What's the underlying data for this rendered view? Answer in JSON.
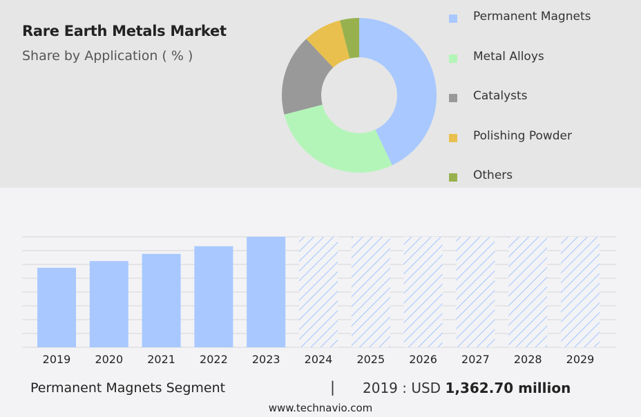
{
  "header": {
    "title": "Rare Earth Metals Market",
    "subtitle": "Share by Application ( % )"
  },
  "chart_data": [
    {
      "type": "pie",
      "variant": "donut",
      "title": "Rare Earth Metals Market",
      "subtitle": "Share by Application ( % )",
      "legend_position": "right",
      "slices": [
        {
          "name": "Permanent Magnets",
          "value": 43,
          "color": "#a8c8ff"
        },
        {
          "name": "Metal Alloys",
          "value": 28,
          "color": "#b3f5b8"
        },
        {
          "name": "Catalysts",
          "value": 17,
          "color": "#999999"
        },
        {
          "name": "Polishing Powder",
          "value": 8,
          "color": "#e9c04d"
        },
        {
          "name": "Others",
          "value": 4,
          "color": "#98b14f"
        }
      ]
    },
    {
      "type": "bar",
      "categories": [
        "2019",
        "2020",
        "2021",
        "2022",
        "2023",
        "2024",
        "2025",
        "2026",
        "2027",
        "2028",
        "2029"
      ],
      "values": [
        1362.7,
        1477.4,
        1601.2,
        1731.6,
        1893.5,
        1893.5,
        1893.5,
        1893.5,
        1893.5,
        1893.5,
        1893.5
      ],
      "forecast_from": "2024",
      "forecast_style": "hatched",
      "ylim": [
        0,
        1893.5
      ],
      "grid": true,
      "bar_color": "#a8c8ff"
    }
  ],
  "footer": {
    "segment_label": "Permanent Magnets Segment",
    "separator": "|",
    "year_label": "2019 : USD",
    "value": "1,362.70 million"
  },
  "source": "www.technavio.com"
}
